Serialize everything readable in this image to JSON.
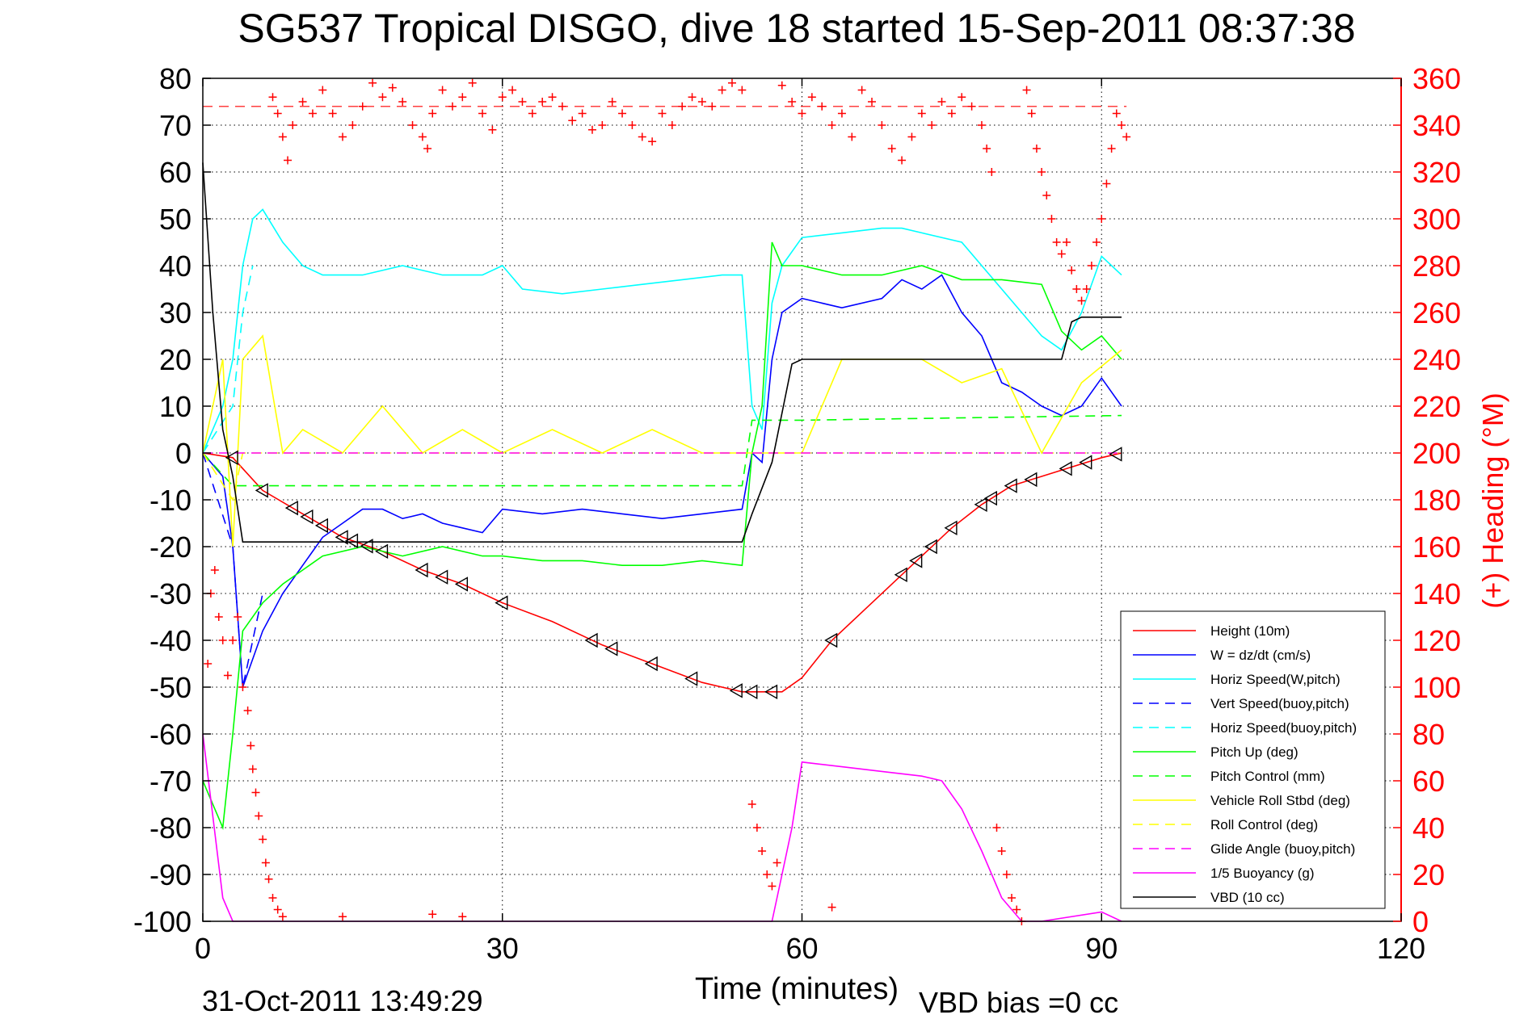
{
  "chart_data": {
    "type": "line",
    "title": "SG537 Tropical DISGO, dive 18 started 15-Sep-2011 08:37:38",
    "xlabel": "Time (minutes)",
    "ylabel_right": "(+) Heading (°M)",
    "footer_left": "31-Oct-2011 13:49:29",
    "footer_right": "VBD bias =0 cc",
    "xlim": [
      0,
      120
    ],
    "ylim": [
      -100,
      80
    ],
    "ylim_right": [
      0,
      360
    ],
    "xticks": [
      0,
      30,
      60,
      90,
      120
    ],
    "yticks": [
      -100,
      -90,
      -80,
      -70,
      -60,
      -50,
      -40,
      -30,
      -20,
      -10,
      0,
      10,
      20,
      30,
      40,
      50,
      60,
      70,
      80
    ],
    "yticks_right": [
      0,
      20,
      40,
      60,
      80,
      100,
      120,
      140,
      160,
      180,
      200,
      220,
      240,
      260,
      280,
      300,
      320,
      340,
      360
    ],
    "grid": true,
    "legend_position": "bottom-right",
    "series": [
      {
        "name": "Height (10m)",
        "color": "#ff0000",
        "style": "solid",
        "x": [
          0,
          3,
          6,
          10,
          14,
          18,
          22,
          26,
          30,
          35,
          40,
          45,
          50,
          54,
          56,
          58,
          60,
          63,
          66,
          69,
          72,
          75,
          78,
          81,
          84,
          87,
          90,
          92
        ],
        "y": [
          0,
          -1,
          -8,
          -13,
          -18,
          -21,
          -25,
          -28,
          -32,
          -36,
          -41,
          -45,
          -49,
          -51,
          -51,
          -51,
          -48,
          -40,
          -34,
          -28,
          -22,
          -16,
          -11,
          -7,
          -5,
          -3,
          -1,
          0
        ]
      },
      {
        "name": "W = dz/dt (cm/s)",
        "color": "#0000ff",
        "style": "solid",
        "x": [
          0,
          2,
          3,
          4,
          6,
          8,
          10,
          12,
          14,
          16,
          18,
          20,
          22,
          24,
          26,
          28,
          30,
          34,
          38,
          42,
          46,
          50,
          54,
          55,
          56,
          57,
          58,
          60,
          64,
          68,
          70,
          72,
          74,
          76,
          78,
          80,
          82,
          84,
          86,
          88,
          90,
          92
        ],
        "y": [
          0,
          -5,
          -20,
          -50,
          -38,
          -30,
          -24,
          -18,
          -15,
          -12,
          -12,
          -14,
          -13,
          -15,
          -16,
          -17,
          -12,
          -13,
          -12,
          -13,
          -14,
          -13,
          -12,
          0,
          -2,
          20,
          30,
          33,
          31,
          33,
          37,
          35,
          38,
          30,
          25,
          15,
          13,
          10,
          8,
          10,
          16,
          10
        ]
      },
      {
        "name": "Horiz Speed(W,pitch)",
        "color": "#00ffff",
        "style": "solid",
        "x": [
          0,
          2,
          3,
          4,
          5,
          6,
          8,
          10,
          12,
          16,
          20,
          24,
          28,
          30,
          32,
          36,
          40,
          44,
          48,
          52,
          54,
          55,
          56,
          57,
          58,
          60,
          64,
          68,
          70,
          72,
          76,
          80,
          84,
          86,
          88,
          90,
          92
        ],
        "y": [
          0,
          10,
          20,
          40,
          50,
          52,
          45,
          40,
          38,
          38,
          40,
          38,
          38,
          40,
          35,
          34,
          35,
          36,
          37,
          38,
          38,
          10,
          5,
          32,
          40,
          46,
          47,
          48,
          48,
          47,
          45,
          35,
          25,
          22,
          30,
          42,
          38
        ]
      },
      {
        "name": "Vert Speed(buoy,pitch)",
        "color": "#0000ff",
        "style": "dashed",
        "x": [
          0,
          3,
          4,
          5,
          6
        ],
        "y": [
          0,
          -20,
          -50,
          -40,
          -30
        ]
      },
      {
        "name": "Horiz Speed(buoy,pitch)",
        "color": "#00ffff",
        "style": "dashed",
        "x": [
          0,
          3,
          4,
          5
        ],
        "y": [
          0,
          10,
          30,
          40
        ]
      },
      {
        "name": "Pitch Up (deg)",
        "color": "#00ff00",
        "style": "solid",
        "x": [
          0,
          2,
          3,
          4,
          6,
          8,
          10,
          12,
          16,
          20,
          24,
          28,
          30,
          34,
          38,
          42,
          46,
          50,
          54,
          55,
          56,
          57,
          58,
          60,
          64,
          68,
          72,
          76,
          80,
          84,
          86,
          88,
          90,
          92
        ],
        "y": [
          -70,
          -80,
          -60,
          -38,
          -32,
          -28,
          -25,
          -22,
          -20,
          -22,
          -20,
          -22,
          -22,
          -23,
          -23,
          -24,
          -24,
          -23,
          -24,
          0,
          10,
          45,
          40,
          40,
          38,
          38,
          40,
          37,
          37,
          36,
          26,
          22,
          25,
          20
        ]
      },
      {
        "name": "Pitch Control (mm)",
        "color": "#00ff00",
        "style": "dashed",
        "x": [
          0,
          3,
          4,
          54,
          55,
          60,
          92
        ],
        "y": [
          0,
          -7,
          -7,
          -7,
          7,
          7,
          8
        ]
      },
      {
        "name": "Vehicle Roll Stbd (deg)",
        "color": "#ffff00",
        "style": "solid",
        "x": [
          0,
          2,
          3,
          4,
          6,
          8,
          10,
          14,
          18,
          22,
          26,
          30,
          35,
          40,
          45,
          50,
          54,
          56,
          58,
          60,
          64,
          68,
          72,
          76,
          80,
          84,
          88,
          92
        ],
        "y": [
          0,
          20,
          -20,
          20,
          25,
          0,
          5,
          0,
          10,
          0,
          5,
          0,
          5,
          0,
          5,
          0,
          0,
          0,
          0,
          0,
          20,
          20,
          20,
          15,
          18,
          0,
          15,
          22
        ]
      },
      {
        "name": "Roll Control (deg)",
        "color": "#ffff00",
        "style": "dashed",
        "x": [
          0,
          3,
          4,
          54,
          55,
          92
        ],
        "y": [
          0,
          -10,
          0,
          0,
          0,
          0
        ]
      },
      {
        "name": "Glide Angle (buoy,pitch)",
        "color": "#ff00ff",
        "style": "dashed",
        "x": [
          0,
          92
        ],
        "y": [
          0,
          0
        ]
      },
      {
        "name": "1/5 Buoyancy (g)",
        "color": "#ff00ff",
        "style": "solid",
        "x": [
          0,
          2,
          3,
          57,
          58,
          59,
          60,
          64,
          68,
          72,
          74,
          76,
          78,
          80,
          82,
          84,
          90,
          92
        ],
        "y": [
          -60,
          -95,
          -100,
          -100,
          -90,
          -80,
          -66,
          -67,
          -68,
          -69,
          -70,
          -76,
          -85,
          -95,
          -100,
          -100,
          -98,
          -100
        ]
      },
      {
        "name": "VBD (10 cc)",
        "color": "#000000",
        "style": "solid",
        "x": [
          0,
          1,
          2,
          3,
          4,
          54,
          55,
          57,
          59,
          60,
          86,
          87,
          88,
          92
        ],
        "y": [
          62,
          30,
          5,
          -5,
          -19,
          -19,
          -13,
          -2,
          19,
          20,
          20,
          28,
          29,
          29
        ]
      }
    ],
    "heading_points": [
      {
        "t": 0.5,
        "h": 110
      },
      {
        "t": 0.8,
        "h": 140
      },
      {
        "t": 1.2,
        "h": 150
      },
      {
        "t": 1.6,
        "h": 130
      },
      {
        "t": 2.0,
        "h": 120
      },
      {
        "t": 2.5,
        "h": 105
      },
      {
        "t": 3.0,
        "h": 120
      },
      {
        "t": 3.5,
        "h": 130
      },
      {
        "t": 4.0,
        "h": 100
      },
      {
        "t": 4.5,
        "h": 90
      },
      {
        "t": 4.8,
        "h": 75
      },
      {
        "t": 5.0,
        "h": 65
      },
      {
        "t": 5.3,
        "h": 55
      },
      {
        "t": 5.6,
        "h": 45
      },
      {
        "t": 6.0,
        "h": 35
      },
      {
        "t": 6.3,
        "h": 25
      },
      {
        "t": 6.6,
        "h": 18
      },
      {
        "t": 7.0,
        "h": 10
      },
      {
        "t": 7.5,
        "h": 5
      },
      {
        "t": 8.0,
        "h": 2
      },
      {
        "t": 7.0,
        "h": 352
      },
      {
        "t": 7.5,
        "h": 345
      },
      {
        "t": 8.0,
        "h": 335
      },
      {
        "t": 8.5,
        "h": 325
      },
      {
        "t": 9.0,
        "h": 340
      },
      {
        "t": 10.0,
        "h": 350
      },
      {
        "t": 11.0,
        "h": 345
      },
      {
        "t": 12.0,
        "h": 355
      },
      {
        "t": 13.0,
        "h": 345
      },
      {
        "t": 14.0,
        "h": 335
      },
      {
        "t": 15.0,
        "h": 340
      },
      {
        "t": 16.0,
        "h": 348
      },
      {
        "t": 17.0,
        "h": 358
      },
      {
        "t": 18.0,
        "h": 352
      },
      {
        "t": 19.0,
        "h": 356
      },
      {
        "t": 20.0,
        "h": 350
      },
      {
        "t": 21.0,
        "h": 340
      },
      {
        "t": 22.0,
        "h": 335
      },
      {
        "t": 22.5,
        "h": 330
      },
      {
        "t": 23.0,
        "h": 345
      },
      {
        "t": 24.0,
        "h": 355
      },
      {
        "t": 25.0,
        "h": 348
      },
      {
        "t": 26.0,
        "h": 352
      },
      {
        "t": 27.0,
        "h": 358
      },
      {
        "t": 28.0,
        "h": 345
      },
      {
        "t": 29.0,
        "h": 338
      },
      {
        "t": 30.0,
        "h": 352
      },
      {
        "t": 31.0,
        "h": 355
      },
      {
        "t": 32.0,
        "h": 350
      },
      {
        "t": 33.0,
        "h": 345
      },
      {
        "t": 34.0,
        "h": 350
      },
      {
        "t": 35.0,
        "h": 352
      },
      {
        "t": 36.0,
        "h": 348
      },
      {
        "t": 37.0,
        "h": 342
      },
      {
        "t": 38.0,
        "h": 345
      },
      {
        "t": 39.0,
        "h": 338
      },
      {
        "t": 40.0,
        "h": 340
      },
      {
        "t": 41.0,
        "h": 350
      },
      {
        "t": 42.0,
        "h": 345
      },
      {
        "t": 43.0,
        "h": 340
      },
      {
        "t": 44.0,
        "h": 335
      },
      {
        "t": 45.0,
        "h": 333
      },
      {
        "t": 46.0,
        "h": 345
      },
      {
        "t": 47.0,
        "h": 340
      },
      {
        "t": 48.0,
        "h": 348
      },
      {
        "t": 49.0,
        "h": 352
      },
      {
        "t": 50.0,
        "h": 350
      },
      {
        "t": 51.0,
        "h": 348
      },
      {
        "t": 52.0,
        "h": 355
      },
      {
        "t": 53.0,
        "h": 358
      },
      {
        "t": 54.0,
        "h": 355
      },
      {
        "t": 55.0,
        "h": 50
      },
      {
        "t": 55.5,
        "h": 40
      },
      {
        "t": 56.0,
        "h": 30
      },
      {
        "t": 56.5,
        "h": 20
      },
      {
        "t": 57.0,
        "h": 15
      },
      {
        "t": 57.5,
        "h": 25
      },
      {
        "t": 58.0,
        "h": 357
      },
      {
        "t": 59.0,
        "h": 350
      },
      {
        "t": 60.0,
        "h": 345
      },
      {
        "t": 61.0,
        "h": 352
      },
      {
        "t": 62.0,
        "h": 348
      },
      {
        "t": 63.0,
        "h": 340
      },
      {
        "t": 64.0,
        "h": 345
      },
      {
        "t": 65.0,
        "h": 335
      },
      {
        "t": 66.0,
        "h": 355
      },
      {
        "t": 67.0,
        "h": 350
      },
      {
        "t": 68.0,
        "h": 340
      },
      {
        "t": 69.0,
        "h": 330
      },
      {
        "t": 70.0,
        "h": 325
      },
      {
        "t": 71.0,
        "h": 335
      },
      {
        "t": 72.0,
        "h": 345
      },
      {
        "t": 73.0,
        "h": 340
      },
      {
        "t": 74.0,
        "h": 350
      },
      {
        "t": 75.0,
        "h": 345
      },
      {
        "t": 76.0,
        "h": 352
      },
      {
        "t": 77.0,
        "h": 348
      },
      {
        "t": 78.0,
        "h": 340
      },
      {
        "t": 78.5,
        "h": 330
      },
      {
        "t": 79.0,
        "h": 320
      },
      {
        "t": 79.5,
        "h": 40
      },
      {
        "t": 80.0,
        "h": 30
      },
      {
        "t": 80.5,
        "h": 20
      },
      {
        "t": 81.0,
        "h": 10
      },
      {
        "t": 81.5,
        "h": 5
      },
      {
        "t": 82.0,
        "h": 0
      },
      {
        "t": 82.5,
        "h": 355
      },
      {
        "t": 83.0,
        "h": 345
      },
      {
        "t": 83.5,
        "h": 330
      },
      {
        "t": 84.0,
        "h": 320
      },
      {
        "t": 84.5,
        "h": 310
      },
      {
        "t": 85.0,
        "h": 300
      },
      {
        "t": 85.5,
        "h": 290
      },
      {
        "t": 86.0,
        "h": 285
      },
      {
        "t": 86.5,
        "h": 290
      },
      {
        "t": 87.0,
        "h": 278
      },
      {
        "t": 87.5,
        "h": 270
      },
      {
        "t": 88.0,
        "h": 265
      },
      {
        "t": 88.5,
        "h": 270
      },
      {
        "t": 89.0,
        "h": 280
      },
      {
        "t": 89.5,
        "h": 290
      },
      {
        "t": 90.0,
        "h": 300
      },
      {
        "t": 90.5,
        "h": 315
      },
      {
        "t": 91.0,
        "h": 330
      },
      {
        "t": 91.5,
        "h": 345
      },
      {
        "t": 92.0,
        "h": 340
      },
      {
        "t": 92.5,
        "h": 335
      },
      {
        "t": 14.0,
        "h": 2
      },
      {
        "t": 23.0,
        "h": 3
      },
      {
        "t": 26.0,
        "h": 2
      },
      {
        "t": 63.0,
        "h": 6
      }
    ],
    "heading_mean": 348,
    "triangle_times": [
      3,
      6,
      9,
      10.5,
      12,
      14,
      15,
      16.5,
      18,
      22,
      24,
      26,
      30,
      39,
      41,
      45,
      49,
      53.5,
      55,
      57,
      63,
      70,
      71.5,
      73,
      75,
      78,
      79,
      81,
      83,
      86.5,
      88.5,
      91.5
    ]
  }
}
